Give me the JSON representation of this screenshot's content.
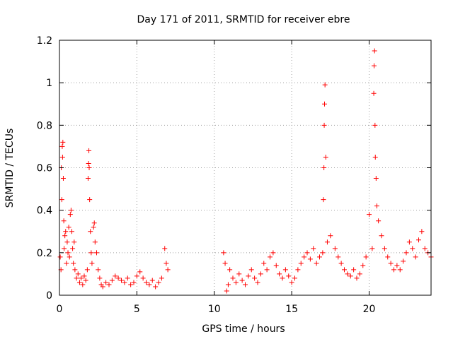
{
  "chart_data": {
    "type": "scatter",
    "title": "Day 171 of 2011, SRMTID for receiver ebre",
    "xlabel": "GPS time / hours",
    "ylabel": "SRMTID / TECUs",
    "xlim": [
      0,
      24
    ],
    "ylim": [
      0,
      1.2
    ],
    "xticks": [
      0,
      5,
      10,
      15,
      20
    ],
    "yticks": [
      0,
      0.2,
      0.4,
      0.6,
      0.8,
      1,
      1.2
    ],
    "xtick_labels": [
      "0",
      "5",
      "10",
      "15",
      "20"
    ],
    "ytick_labels": [
      "0",
      "0.2",
      "0.4",
      "0.6",
      "0.8",
      "1",
      "1.2"
    ],
    "grid": true,
    "marker": "+",
    "series_color": "#ff0000",
    "series": [
      {
        "name": "SRMTID",
        "points": [
          [
            0.05,
            0.18
          ],
          [
            0.1,
            0.12
          ],
          [
            0.12,
            0.6
          ],
          [
            0.15,
            0.45
          ],
          [
            0.18,
            0.7
          ],
          [
            0.2,
            0.65
          ],
          [
            0.22,
            0.72
          ],
          [
            0.25,
            0.55
          ],
          [
            0.28,
            0.35
          ],
          [
            0.3,
            0.22
          ],
          [
            0.35,
            0.28
          ],
          [
            0.4,
            0.3
          ],
          [
            0.45,
            0.15
          ],
          [
            0.5,
            0.25
          ],
          [
            0.55,
            0.2
          ],
          [
            0.6,
            0.32
          ],
          [
            0.65,
            0.18
          ],
          [
            0.7,
            0.38
          ],
          [
            0.75,
            0.4
          ],
          [
            0.8,
            0.3
          ],
          [
            0.85,
            0.22
          ],
          [
            0.9,
            0.15
          ],
          [
            0.95,
            0.25
          ],
          [
            1.0,
            0.12
          ],
          [
            1.1,
            0.08
          ],
          [
            1.2,
            0.1
          ],
          [
            1.3,
            0.06
          ],
          [
            1.4,
            0.08
          ],
          [
            1.5,
            0.05
          ],
          [
            1.6,
            0.09
          ],
          [
            1.7,
            0.07
          ],
          [
            1.8,
            0.12
          ],
          [
            1.85,
            0.55
          ],
          [
            1.88,
            0.62
          ],
          [
            1.9,
            0.68
          ],
          [
            1.92,
            0.6
          ],
          [
            1.95,
            0.45
          ],
          [
            2.0,
            0.3
          ],
          [
            2.05,
            0.2
          ],
          [
            2.1,
            0.15
          ],
          [
            2.2,
            0.32
          ],
          [
            2.25,
            0.34
          ],
          [
            2.3,
            0.25
          ],
          [
            2.4,
            0.2
          ],
          [
            2.5,
            0.12
          ],
          [
            2.6,
            0.08
          ],
          [
            2.7,
            0.05
          ],
          [
            2.8,
            0.04
          ],
          [
            3.0,
            0.06
          ],
          [
            3.2,
            0.05
          ],
          [
            3.4,
            0.07
          ],
          [
            3.6,
            0.09
          ],
          [
            3.8,
            0.08
          ],
          [
            4.0,
            0.07
          ],
          [
            4.2,
            0.06
          ],
          [
            4.4,
            0.08
          ],
          [
            4.6,
            0.05
          ],
          [
            4.8,
            0.06
          ],
          [
            5.0,
            0.09
          ],
          [
            5.2,
            0.11
          ],
          [
            5.4,
            0.08
          ],
          [
            5.6,
            0.06
          ],
          [
            5.8,
            0.05
          ],
          [
            6.0,
            0.07
          ],
          [
            6.2,
            0.04
          ],
          [
            6.4,
            0.06
          ],
          [
            6.6,
            0.08
          ],
          [
            6.8,
            0.22
          ],
          [
            6.9,
            0.15
          ],
          [
            7.0,
            0.12
          ],
          [
            10.6,
            0.2
          ],
          [
            10.7,
            0.15
          ],
          [
            10.8,
            0.02
          ],
          [
            10.9,
            0.05
          ],
          [
            11.0,
            0.12
          ],
          [
            11.2,
            0.08
          ],
          [
            11.4,
            0.06
          ],
          [
            11.6,
            0.1
          ],
          [
            11.8,
            0.07
          ],
          [
            12.0,
            0.05
          ],
          [
            12.2,
            0.09
          ],
          [
            12.4,
            0.12
          ],
          [
            12.6,
            0.08
          ],
          [
            12.8,
            0.06
          ],
          [
            13.0,
            0.1
          ],
          [
            13.2,
            0.15
          ],
          [
            13.4,
            0.12
          ],
          [
            13.6,
            0.18
          ],
          [
            13.8,
            0.2
          ],
          [
            14.0,
            0.14
          ],
          [
            14.2,
            0.1
          ],
          [
            14.4,
            0.08
          ],
          [
            14.6,
            0.12
          ],
          [
            14.8,
            0.09
          ],
          [
            15.0,
            0.06
          ],
          [
            15.2,
            0.08
          ],
          [
            15.4,
            0.12
          ],
          [
            15.6,
            0.15
          ],
          [
            15.8,
            0.18
          ],
          [
            16.0,
            0.2
          ],
          [
            16.2,
            0.17
          ],
          [
            16.4,
            0.22
          ],
          [
            16.6,
            0.15
          ],
          [
            16.8,
            0.18
          ],
          [
            17.0,
            0.2
          ],
          [
            17.05,
            0.45
          ],
          [
            17.08,
            0.6
          ],
          [
            17.1,
            0.8
          ],
          [
            17.12,
            0.9
          ],
          [
            17.15,
            0.99
          ],
          [
            17.2,
            0.65
          ],
          [
            17.3,
            0.25
          ],
          [
            17.5,
            0.28
          ],
          [
            17.8,
            0.22
          ],
          [
            18.0,
            0.18
          ],
          [
            18.2,
            0.15
          ],
          [
            18.4,
            0.12
          ],
          [
            18.6,
            0.1
          ],
          [
            18.8,
            0.09
          ],
          [
            19.0,
            0.12
          ],
          [
            19.2,
            0.08
          ],
          [
            19.4,
            0.1
          ],
          [
            19.6,
            0.14
          ],
          [
            19.8,
            0.18
          ],
          [
            20.0,
            0.38
          ],
          [
            20.2,
            0.22
          ],
          [
            20.3,
            0.95
          ],
          [
            20.32,
            1.08
          ],
          [
            20.35,
            1.15
          ],
          [
            20.38,
            0.8
          ],
          [
            20.4,
            0.65
          ],
          [
            20.45,
            0.55
          ],
          [
            20.5,
            0.42
          ],
          [
            20.6,
            0.35
          ],
          [
            20.8,
            0.28
          ],
          [
            21.0,
            0.22
          ],
          [
            21.2,
            0.18
          ],
          [
            21.4,
            0.15
          ],
          [
            21.6,
            0.12
          ],
          [
            21.8,
            0.14
          ],
          [
            22.0,
            0.12
          ],
          [
            22.2,
            0.16
          ],
          [
            22.4,
            0.2
          ],
          [
            22.6,
            0.25
          ],
          [
            22.8,
            0.22
          ],
          [
            23.0,
            0.18
          ],
          [
            23.2,
            0.26
          ],
          [
            23.4,
            0.3
          ],
          [
            23.6,
            0.22
          ],
          [
            23.8,
            0.2
          ],
          [
            24.0,
            0.18
          ]
        ]
      }
    ]
  }
}
